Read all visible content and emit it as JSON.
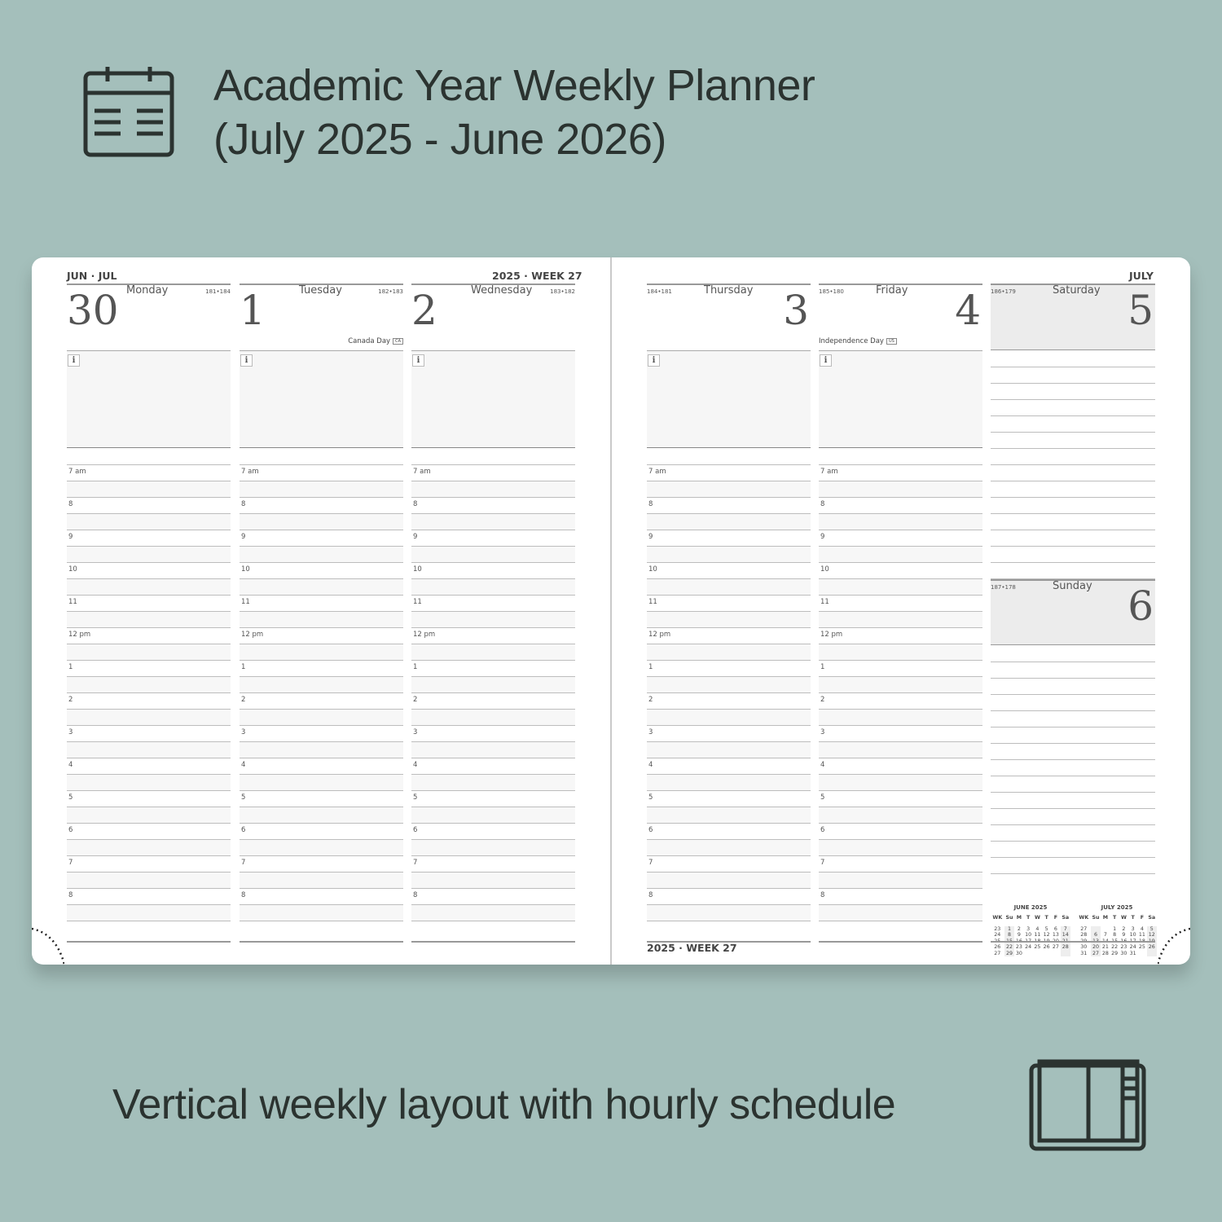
{
  "title_line1": "Academic Year Weekly Planner",
  "title_line2": "(July 2025 - June 2026)",
  "subtitle": "Vertical weekly layout with hourly schedule",
  "colors": {
    "background": "#a4bfbb",
    "text": "#2b3330",
    "page": "#ffffff"
  },
  "icons": {
    "top": "calendar-icon",
    "bottom": "open-planner-icon",
    "info": "info-icon"
  },
  "left_page": {
    "top_left": "JUN · JUL",
    "top_right": "2025 · WEEK 27"
  },
  "right_page": {
    "top_right": "JULY",
    "bottom_left": "2025 · WEEK 27"
  },
  "hours": [
    "7 am",
    "8",
    "9",
    "10",
    "11",
    "12 pm",
    "1",
    "2",
    "3",
    "4",
    "5",
    "6",
    "7",
    "8"
  ],
  "info_label": "i",
  "days": [
    {
      "number": "30",
      "weekday": "Monday",
      "count": "181•184",
      "holiday": "",
      "badge": ""
    },
    {
      "number": "1",
      "weekday": "Tuesday",
      "count": "182•183",
      "holiday": "Canada Day",
      "badge": "CA"
    },
    {
      "number": "2",
      "weekday": "Wednesday",
      "count": "183•182",
      "holiday": "",
      "badge": ""
    },
    {
      "number": "3",
      "weekday": "Thursday",
      "count": "184•181",
      "holiday": "",
      "badge": ""
    },
    {
      "number": "4",
      "weekday": "Friday",
      "count": "185•180",
      "holiday": "Independence Day",
      "badge": "US"
    }
  ],
  "weekend": [
    {
      "number": "5",
      "weekday": "Saturday",
      "count": "186•179"
    },
    {
      "number": "6",
      "weekday": "Sunday",
      "count": "187•178"
    }
  ],
  "mini_calendars": [
    {
      "title": "JUNE 2025",
      "header": [
        "WK",
        "Su",
        "M",
        "T",
        "W",
        "T",
        "F",
        "Sa"
      ],
      "rows": [
        [
          "23",
          "1",
          "2",
          "3",
          "4",
          "5",
          "6",
          "7"
        ],
        [
          "24",
          "8",
          "9",
          "10",
          "11",
          "12",
          "13",
          "14"
        ],
        [
          "25",
          "15",
          "16",
          "17",
          "18",
          "19",
          "20",
          "21"
        ],
        [
          "26",
          "22",
          "23",
          "24",
          "25",
          "26",
          "27",
          "28"
        ],
        [
          "27",
          "29",
          "30",
          "",
          "",
          "",
          "",
          ""
        ]
      ]
    },
    {
      "title": "JULY 2025",
      "header": [
        "WK",
        "Su",
        "M",
        "T",
        "W",
        "T",
        "F",
        "Sa"
      ],
      "rows": [
        [
          "27",
          "",
          "",
          "1",
          "2",
          "3",
          "4",
          "5"
        ],
        [
          "28",
          "6",
          "7",
          "8",
          "9",
          "10",
          "11",
          "12"
        ],
        [
          "29",
          "13",
          "14",
          "15",
          "16",
          "17",
          "18",
          "19"
        ],
        [
          "30",
          "20",
          "21",
          "22",
          "23",
          "24",
          "25",
          "26"
        ],
        [
          "31",
          "27",
          "28",
          "29",
          "30",
          "31",
          "",
          ""
        ]
      ]
    }
  ]
}
